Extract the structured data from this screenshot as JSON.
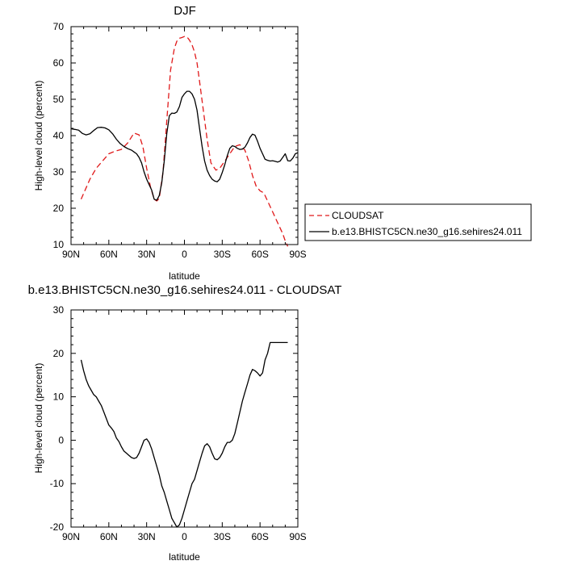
{
  "chart_data": [
    {
      "type": "line",
      "title": "DJF",
      "xlabel": "latitude",
      "ylabel": "High-level cloud (percent)",
      "xlim": [
        -90,
        90
      ],
      "ylim": [
        10,
        70
      ],
      "x_ticks": [
        -90,
        -60,
        -30,
        0,
        30,
        60,
        90
      ],
      "x_tick_labels": [
        "90N",
        "60N",
        "30N",
        "0",
        "30S",
        "60S",
        "90S"
      ],
      "y_ticks": [
        10,
        20,
        30,
        40,
        50,
        60,
        70
      ],
      "y_tick_labels": [
        "10",
        "20",
        "30",
        "40",
        "50",
        "60",
        "70"
      ],
      "legend_position": "right-outside",
      "series": [
        {
          "name": "CLOUDSAT",
          "color": "#e0191a",
          "dash": "dashed",
          "x": [
            -82,
            -75,
            -70,
            -65,
            -60,
            -55,
            -50,
            -45,
            -40,
            -36,
            -33,
            -30,
            -27,
            -24,
            -22,
            -20,
            -17,
            -14,
            -11,
            -8,
            -6,
            -4,
            -2,
            0,
            2,
            4,
            6,
            8,
            10,
            12,
            15,
            18,
            21,
            25,
            28,
            32,
            36,
            40,
            44,
            48,
            51,
            54,
            57,
            60,
            63,
            66,
            70,
            74,
            78,
            80,
            82
          ],
          "y": [
            22.5,
            28,
            31,
            33,
            35,
            35.7,
            36.2,
            38,
            40.7,
            40.2,
            37,
            31,
            26,
            22.5,
            22,
            22.7,
            30,
            44,
            58,
            64,
            66,
            66.8,
            67,
            67.3,
            67.2,
            66.3,
            65,
            63,
            60,
            55,
            47,
            39,
            32.5,
            30.5,
            31,
            33,
            35,
            37,
            37.5,
            36,
            33,
            29,
            26,
            24.8,
            24.2,
            22,
            19,
            16,
            13,
            11,
            9.5
          ]
        },
        {
          "name": "b.e13.BHISTC5CN.ne30_g16.sehires24.011",
          "color": "#000000",
          "dash": "solid",
          "x": [
            -90,
            -87,
            -84,
            -81,
            -78,
            -75,
            -72,
            -69,
            -66,
            -63,
            -60,
            -57,
            -54,
            -51,
            -48,
            -45,
            -42,
            -40,
            -38,
            -36,
            -34,
            -32,
            -30,
            -28,
            -26,
            -24,
            -22,
            -20,
            -18,
            -16,
            -14,
            -12,
            -10,
            -8,
            -6,
            -4,
            -2,
            0,
            2,
            4,
            6,
            8,
            10,
            12,
            14,
            16,
            18,
            20,
            22,
            24,
            26,
            28,
            30,
            32,
            34,
            36,
            38,
            40,
            42,
            44,
            46,
            48,
            50,
            52,
            54,
            56,
            58,
            60,
            62,
            64,
            66,
            68,
            70,
            72,
            74,
            76,
            78,
            80,
            82,
            84,
            86,
            88,
            90
          ],
          "y": [
            41.9,
            41.7,
            41.5,
            40.6,
            40.2,
            40.5,
            41.4,
            42.2,
            42.3,
            42.1,
            41.6,
            40.5,
            39,
            37.8,
            37,
            36.4,
            36,
            35.5,
            35,
            34,
            32.5,
            30,
            28,
            26.5,
            25,
            22.5,
            22.2,
            23.5,
            27,
            33,
            40.5,
            45.5,
            46.2,
            46.1,
            46.5,
            48,
            50.5,
            51.5,
            52.2,
            52.2,
            51.5,
            50,
            47,
            42,
            37,
            33,
            30.5,
            29,
            28,
            27.5,
            27.3,
            28,
            29.8,
            32,
            34.5,
            36.5,
            37.2,
            37,
            36.5,
            36.2,
            36.3,
            36.8,
            38,
            39.5,
            40.4,
            40.1,
            38.5,
            36.5,
            35,
            33.5,
            33.2,
            33,
            33.1,
            32.9,
            32.7,
            33,
            34,
            35,
            33.1,
            33,
            33.8,
            35,
            35.3
          ]
        }
      ]
    },
    {
      "type": "line",
      "title": "b.e13.BHISTC5CN.ne30_g16.sehires24.011 - CLOUDSAT",
      "xlabel": "latitude",
      "ylabel": "High-level cloud (percent)",
      "xlim": [
        -90,
        90
      ],
      "ylim": [
        -20,
        30
      ],
      "x_ticks": [
        -90,
        -60,
        -30,
        0,
        30,
        60,
        90
      ],
      "x_tick_labels": [
        "90N",
        "60N",
        "30N",
        "0",
        "30S",
        "60S",
        "90S"
      ],
      "y_ticks": [
        -20,
        -10,
        0,
        10,
        20,
        30
      ],
      "y_tick_labels": [
        "-20",
        "-10",
        "0",
        "10",
        "20",
        "30"
      ],
      "series": [
        {
          "color": "#000000",
          "dash": "solid",
          "x": [
            -82,
            -80,
            -78,
            -76,
            -74,
            -72,
            -70,
            -68,
            -66,
            -64,
            -62,
            -60,
            -58,
            -56,
            -54,
            -52,
            -50,
            -48,
            -46,
            -44,
            -42,
            -40,
            -38,
            -36,
            -34,
            -32,
            -30,
            -28,
            -26,
            -24,
            -22,
            -20,
            -18,
            -16,
            -14,
            -12,
            -10,
            -8,
            -6,
            -4,
            -2,
            0,
            2,
            4,
            6,
            8,
            10,
            12,
            14,
            16,
            18,
            20,
            22,
            24,
            26,
            28,
            30,
            32,
            34,
            36,
            38,
            40,
            42,
            44,
            46,
            48,
            50,
            52,
            54,
            56,
            58,
            60,
            62,
            64,
            66,
            68,
            70,
            72,
            74,
            76,
            78,
            80,
            82
          ],
          "y": [
            18.5,
            16,
            14,
            12.5,
            11.5,
            10.5,
            10,
            9,
            8,
            6.5,
            5,
            3.5,
            2.8,
            2,
            0.5,
            -0.3,
            -1.5,
            -2.5,
            -3,
            -3.5,
            -4,
            -4.2,
            -4,
            -3,
            -1.5,
            0,
            0.3,
            -0.5,
            -2,
            -4,
            -6,
            -8,
            -10.5,
            -12,
            -14,
            -16,
            -18,
            -19,
            -20,
            -19.5,
            -18,
            -16,
            -14,
            -12,
            -10,
            -9,
            -7,
            -5,
            -3,
            -1.3,
            -0.8,
            -1.5,
            -3,
            -4.3,
            -4.5,
            -4,
            -3,
            -1.5,
            -0.5,
            -0.5,
            0,
            1.5,
            4,
            6.5,
            9,
            11,
            13,
            15,
            16.3,
            16,
            15.5,
            14.8,
            15.5,
            18.5,
            20,
            22.5,
            22.5,
            22.5,
            22.5,
            22.5,
            22.5,
            22.5,
            22.5
          ]
        }
      ]
    }
  ]
}
